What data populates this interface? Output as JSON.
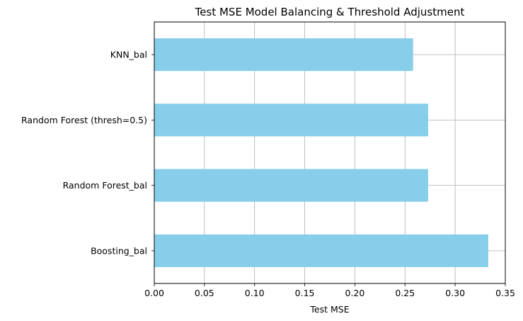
{
  "chart_data": {
    "type": "bar",
    "orientation": "horizontal",
    "title": "Test MSE Model Balancing & Threshold Adjustment",
    "xlabel": "Test MSE",
    "ylabel": "",
    "categories": [
      "KNN_bal",
      "Random Forest (thresh=0.5)",
      "Random Forest_bal",
      "Boosting_bal"
    ],
    "values": [
      0.258,
      0.273,
      0.273,
      0.333
    ],
    "xlim": [
      0,
      0.35
    ],
    "xticks": [
      "0.00",
      "0.05",
      "0.10",
      "0.15",
      "0.20",
      "0.25",
      "0.30",
      "0.35"
    ],
    "grid": true,
    "bar_color": "#87ceeb"
  }
}
